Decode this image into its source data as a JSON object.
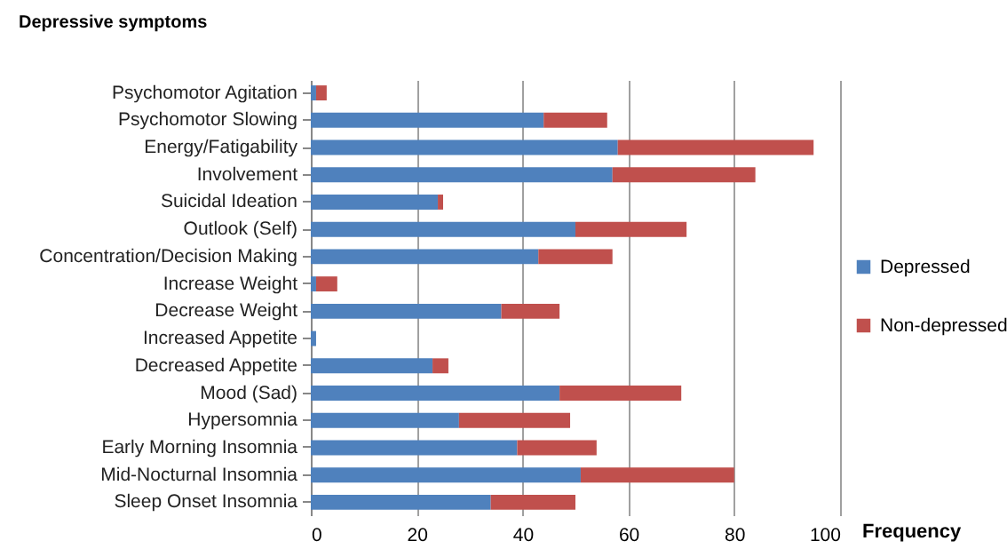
{
  "chart_data": {
    "type": "bar",
    "orientation": "horizontal",
    "stacked": true,
    "ylabel": "Depressive symptoms",
    "xlabel": "Frequency",
    "categories": [
      "Psychomotor Agitation",
      "Psychomotor Slowing",
      "Energy/Fatigability",
      "Involvement",
      "Suicidal Ideation",
      "Outlook (Self)",
      "Concentration/Decision Making",
      "Increase Weight",
      "Decrease Weight",
      "Increased Appetite",
      "Decreased Appetite",
      "Mood (Sad)",
      "Hypersomnia",
      "Early Morning Insomnia",
      "Mid-Nocturnal Insomnia",
      "Sleep Onset Insomnia"
    ],
    "series": [
      {
        "name": "Depressed",
        "color": "#4f81bd",
        "values": [
          1,
          44,
          58,
          57,
          24,
          50,
          43,
          1,
          36,
          1,
          23,
          47,
          28,
          39,
          51,
          34
        ]
      },
      {
        "name": "Non-depressed",
        "color": "#c0504d",
        "values": [
          2,
          12,
          37,
          27,
          1,
          21,
          14,
          4,
          11,
          0,
          3,
          23,
          21,
          15,
          29,
          16
        ]
      }
    ],
    "xlim": [
      0,
      100
    ],
    "xticks": [
      0,
      20,
      40,
      60,
      80,
      100
    ],
    "grid": "x",
    "legend": "right"
  }
}
